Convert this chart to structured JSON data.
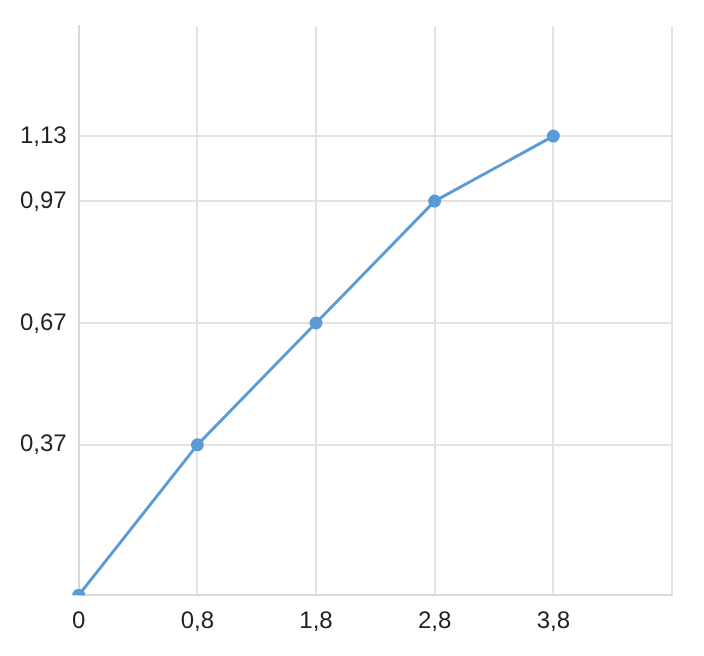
{
  "chart_data": {
    "type": "line",
    "categories": [
      "0",
      "0,8",
      "1,8",
      "2,8",
      "3,8",
      null
    ],
    "series": [
      {
        "color": "#5b9bd5",
        "values": [
          0,
          0.37,
          0.67,
          0.97,
          1.13,
          null
        ]
      }
    ],
    "ylim": [
      0,
      1.4
    ],
    "yticks": [
      {
        "value": 0,
        "label": null
      },
      {
        "value": 0.37,
        "label": "0,37"
      },
      {
        "value": 0.67,
        "label": "0,67"
      },
      {
        "value": 0.97,
        "label": "0,97"
      },
      {
        "value": 1.13,
        "label": "1,13"
      }
    ],
    "grid": true,
    "marker": "circle",
    "line_style": "solid",
    "legend": false
  }
}
